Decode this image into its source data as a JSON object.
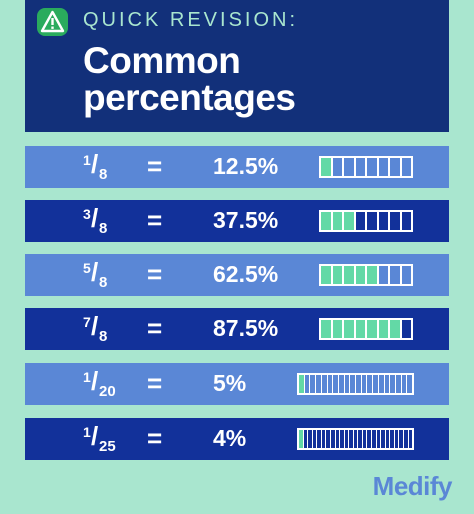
{
  "header": {
    "subtitle": "QUICK REVISION:",
    "title_line1": "Common",
    "title_line2": "percentages",
    "icon": "warning-icon"
  },
  "rows": [
    {
      "numerator": "1",
      "denominator": "8",
      "equals": "=",
      "percent": "12.5%",
      "segments": 8,
      "filled": 1
    },
    {
      "numerator": "3",
      "denominator": "8",
      "equals": "=",
      "percent": "37.5%",
      "segments": 8,
      "filled": 3
    },
    {
      "numerator": "5",
      "denominator": "8",
      "equals": "=",
      "percent": "62.5%",
      "segments": 8,
      "filled": 5
    },
    {
      "numerator": "7",
      "denominator": "8",
      "equals": "=",
      "percent": "87.5%",
      "segments": 8,
      "filled": 7
    },
    {
      "numerator": "1",
      "denominator": "20",
      "equals": "=",
      "percent": "5%",
      "segments": 20,
      "filled": 1
    },
    {
      "numerator": "1",
      "denominator": "25",
      "equals": "=",
      "percent": "4%",
      "segments": 25,
      "filled": 1
    }
  ],
  "brand": {
    "logo_text": "Medify"
  },
  "colors": {
    "background": "#a9e6cf",
    "header": "#12307a",
    "row_light": "#5a87d6",
    "row_dark": "#12319a",
    "fill": "#63d9a6",
    "warning": "#2aab5d"
  }
}
